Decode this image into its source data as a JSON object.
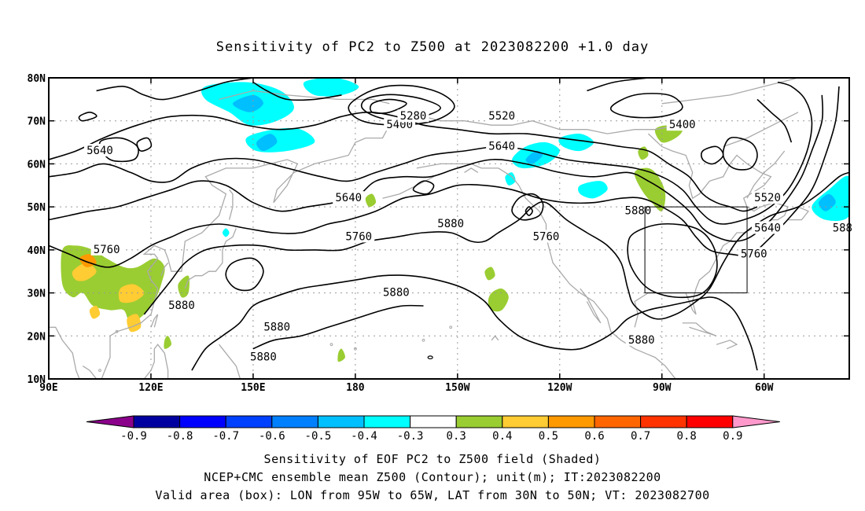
{
  "title": "Sensitivity of PC2 to Z500 at 2023082200 +1.0 day",
  "captions": {
    "line1": "Sensitivity of EOF PC2 to Z500 field (Shaded)",
    "line2": "NCEP+CMC ensemble mean Z500 (Contour); unit(m); IT:2023082200",
    "line3": "Valid area (box): LON from 95W to 65W, LAT from 30N to 50N; VT: 2023082700"
  },
  "map": {
    "lon_range": [
      90,
      325
    ],
    "lat_range": [
      10,
      80
    ],
    "lat_ticks": [
      {
        "value": 80,
        "label": "80N"
      },
      {
        "value": 70,
        "label": "70N"
      },
      {
        "value": 60,
        "label": "60N"
      },
      {
        "value": 50,
        "label": "50N"
      },
      {
        "value": 40,
        "label": "40N"
      },
      {
        "value": 30,
        "label": "30N"
      },
      {
        "value": 20,
        "label": "20N"
      },
      {
        "value": 10,
        "label": "10N"
      }
    ],
    "lon_ticks": [
      {
        "value": 90,
        "label": "90E"
      },
      {
        "value": 120,
        "label": "120E"
      },
      {
        "value": 150,
        "label": "150E"
      },
      {
        "value": 180,
        "label": "180"
      },
      {
        "value": 210,
        "label": "150W"
      },
      {
        "value": 240,
        "label": "120W"
      },
      {
        "value": 270,
        "label": "90W"
      },
      {
        "value": 300,
        "label": "60W"
      }
    ],
    "valid_box": {
      "lon": [
        265,
        295
      ],
      "lat": [
        30,
        50
      ]
    },
    "contour_labels": [
      {
        "text": "5640",
        "lon": 105,
        "lat": 63
      },
      {
        "text": "5760",
        "lon": 107,
        "lat": 40
      },
      {
        "text": "5880",
        "lon": 129,
        "lat": 27
      },
      {
        "text": "5880",
        "lon": 157,
        "lat": 22
      },
      {
        "text": "5880",
        "lon": 153,
        "lat": 15
      },
      {
        "text": "5640",
        "lon": 178,
        "lat": 52
      },
      {
        "text": "5760",
        "lon": 181,
        "lat": 43
      },
      {
        "text": "5400",
        "lon": 193,
        "lat": 69
      },
      {
        "text": "5280",
        "lon": 197,
        "lat": 71
      },
      {
        "text": "5520",
        "lon": 223,
        "lat": 71
      },
      {
        "text": "5640",
        "lon": 223,
        "lat": 64
      },
      {
        "text": "5880",
        "lon": 192,
        "lat": 30
      },
      {
        "text": "5880",
        "lon": 208,
        "lat": 46
      },
      {
        "text": "5760",
        "lon": 236,
        "lat": 43
      },
      {
        "text": "5880",
        "lon": 263,
        "lat": 49
      },
      {
        "text": "5880",
        "lon": 264,
        "lat": 19
      },
      {
        "text": "5400",
        "lon": 276,
        "lat": 69
      },
      {
        "text": "5520",
        "lon": 301,
        "lat": 52
      },
      {
        "text": "5640",
        "lon": 301,
        "lat": 45
      },
      {
        "text": "5760",
        "lon": 297,
        "lat": 39
      },
      {
        "text": "588",
        "lon": 323,
        "lat": 45
      }
    ]
  },
  "colorbar": {
    "colors": [
      "#8b008b",
      "#0000a0",
      "#0000ff",
      "#0040ff",
      "#0080ff",
      "#00bfff",
      "#00ffff",
      "#ffffff",
      "#9acd32",
      "#ffcc33",
      "#ff9900",
      "#ff6600",
      "#ff3300",
      "#ff0000",
      "#ff99cc"
    ],
    "labels": [
      "-0.9",
      "-0.8",
      "-0.7",
      "-0.6",
      "-0.5",
      "-0.4",
      "-0.3",
      "0.3",
      "0.4",
      "0.5",
      "0.6",
      "0.7",
      "0.8",
      "0.9"
    ]
  }
}
